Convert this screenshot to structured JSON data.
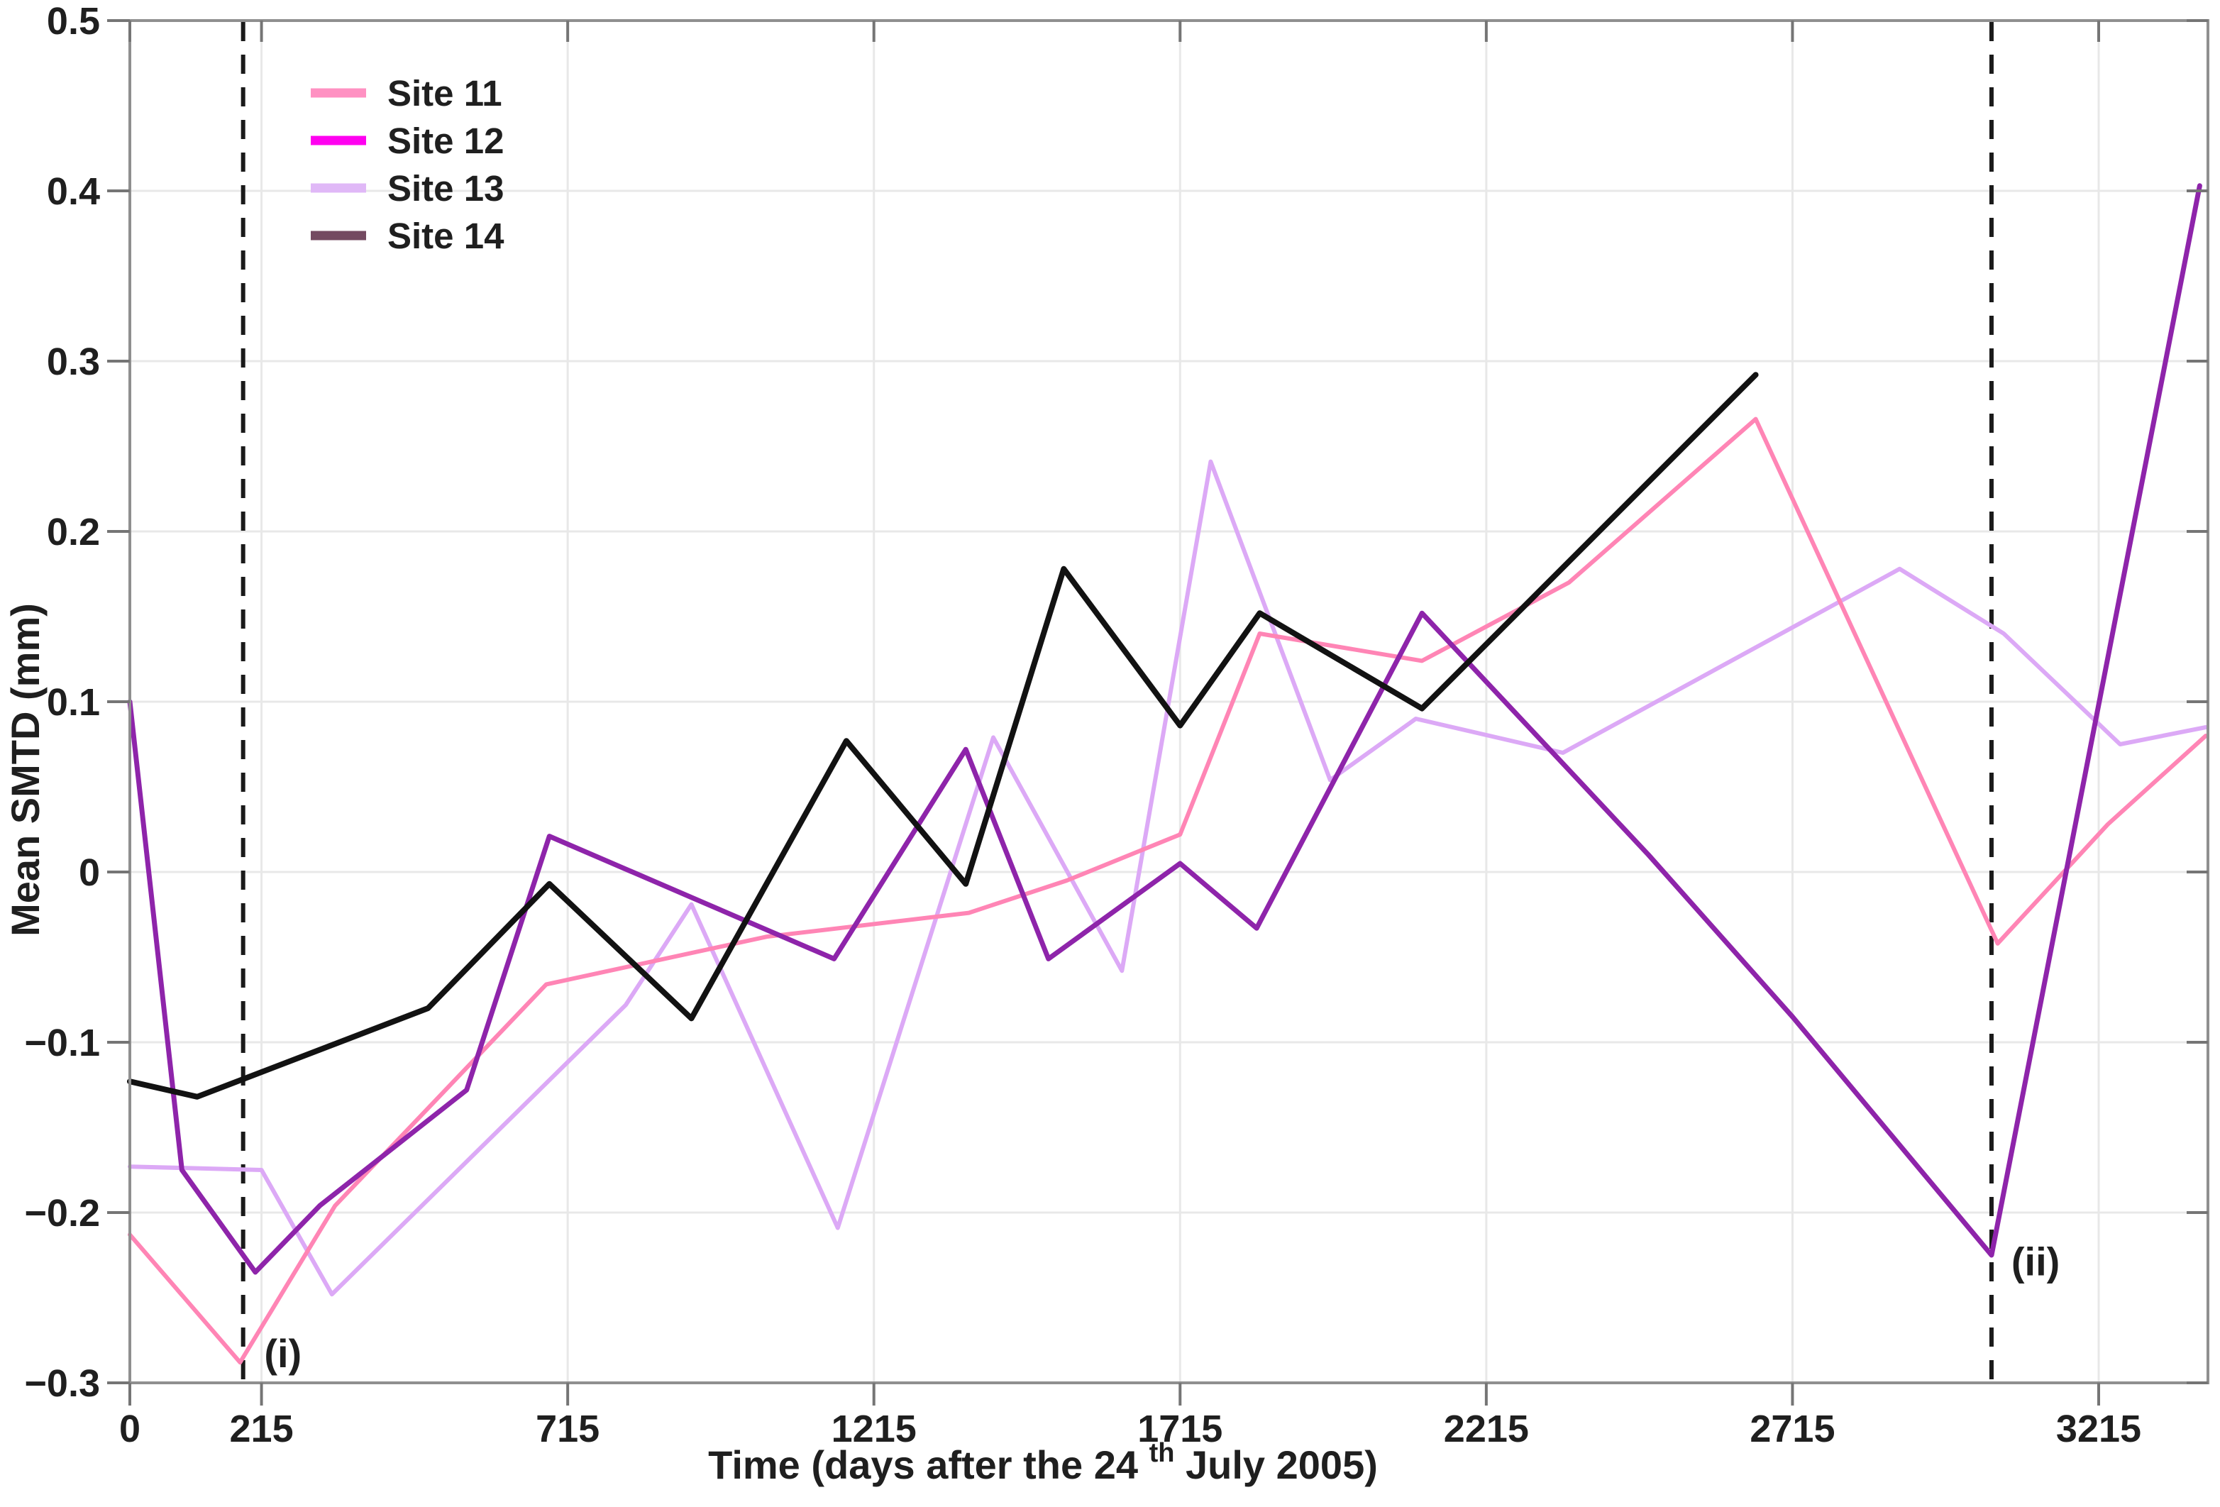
{
  "page": {
    "background": "#ffffff"
  },
  "chart_data": {
    "type": "line",
    "title": "",
    "ylabel": "Mean SMTD (mm)",
    "xlabel_pre": "Time (days after the 24",
    "xlabel_sup": "th",
    "xlabel_post": " July 2005)",
    "xlim": [
      0,
      3393
    ],
    "ylim": [
      -0.3,
      0.5
    ],
    "grid": true,
    "legend_position": "top-left",
    "x_ticks": [
      {
        "value": 0,
        "label": "0"
      },
      {
        "value": 215,
        "label": "215"
      },
      {
        "value": 715,
        "label": "715"
      },
      {
        "value": 1215,
        "label": "1215"
      },
      {
        "value": 1715,
        "label": "1715"
      },
      {
        "value": 2215,
        "label": "2215"
      },
      {
        "value": 2715,
        "label": "2715"
      },
      {
        "value": 3215,
        "label": "3215"
      }
    ],
    "y_ticks": [
      {
        "value": -0.3,
        "label": "−0.3"
      },
      {
        "value": -0.2,
        "label": "−0.2"
      },
      {
        "value": -0.1,
        "label": "−0.1"
      },
      {
        "value": 0,
        "label": "0"
      },
      {
        "value": 0.1,
        "label": "0.1"
      },
      {
        "value": 0.2,
        "label": "0.2"
      },
      {
        "value": 0.3,
        "label": "0.3"
      },
      {
        "value": 0.4,
        "label": "0.4"
      },
      {
        "value": 0.5,
        "label": "0.5"
      }
    ],
    "series": [
      {
        "name": "Site 11",
        "legend_color": "#FF91C2",
        "line_color": "#FF85B5",
        "line_width": 6,
        "points": [
          [
            0,
            -0.213
          ],
          [
            180,
            -0.288
          ],
          [
            335,
            -0.196
          ],
          [
            680,
            -0.066
          ],
          [
            1040,
            -0.038
          ],
          [
            1370,
            -0.024
          ],
          [
            1530,
            -0.005
          ],
          [
            1715,
            0.022
          ],
          [
            1845,
            0.14
          ],
          [
            2110,
            0.124
          ],
          [
            2350,
            0.17
          ],
          [
            2655,
            0.266
          ],
          [
            3050,
            -0.042
          ],
          [
            3230,
            0.028
          ],
          [
            3390,
            0.08
          ]
        ]
      },
      {
        "name": "Site 12",
        "legend_color": "#FF00F0",
        "line_color": "#8E24AA",
        "line_width": 7,
        "points": [
          [
            0,
            0.1
          ],
          [
            85,
            -0.175
          ],
          [
            205,
            -0.235
          ],
          [
            310,
            -0.196
          ],
          [
            550,
            -0.128
          ],
          [
            685,
            0.021
          ],
          [
            1150,
            -0.051
          ],
          [
            1365,
            0.072
          ],
          [
            1500,
            -0.051
          ],
          [
            1715,
            0.005
          ],
          [
            1840,
            -0.033
          ],
          [
            2110,
            0.152
          ],
          [
            2480,
            0.01
          ],
          [
            2715,
            -0.085
          ],
          [
            3040,
            -0.225
          ],
          [
            3380,
            0.403
          ]
        ]
      },
      {
        "name": "Site 13",
        "legend_color": "#E0B8F7",
        "line_color": "#DCA9F6",
        "line_width": 6,
        "points": [
          [
            0,
            -0.173
          ],
          [
            215,
            -0.175
          ],
          [
            330,
            -0.248
          ],
          [
            810,
            -0.078
          ],
          [
            917,
            -0.019
          ],
          [
            1156,
            -0.209
          ],
          [
            1410,
            0.079
          ],
          [
            1620,
            -0.058
          ],
          [
            1765,
            0.241
          ],
          [
            1960,
            0.054
          ],
          [
            2100,
            0.09
          ],
          [
            2340,
            0.07
          ],
          [
            2890,
            0.178
          ],
          [
            3060,
            0.14
          ],
          [
            3250,
            0.075
          ],
          [
            3390,
            0.085
          ]
        ]
      },
      {
        "name": "Site 14",
        "legend_color": "#744A61",
        "line_color": "#121212",
        "line_width": 8,
        "points": [
          [
            0,
            -0.123
          ],
          [
            110,
            -0.132
          ],
          [
            487,
            -0.08
          ],
          [
            685,
            -0.007
          ],
          [
            917,
            -0.086
          ],
          [
            1170,
            0.077
          ],
          [
            1365,
            -0.007
          ],
          [
            1525,
            0.178
          ],
          [
            1715,
            0.086
          ],
          [
            1845,
            0.152
          ],
          [
            2110,
            0.096
          ],
          [
            2655,
            0.292
          ]
        ]
      }
    ],
    "annotations": [
      {
        "label": "(i)",
        "line_x_day": 185,
        "text_x_day": 250,
        "text_y_val": -0.283
      },
      {
        "label": "(ii)",
        "line_x_day": 3040,
        "text_x_day": 3112,
        "text_y_val": -0.229
      }
    ],
    "colors": {
      "grid": "#E8E8E8",
      "spine": "#8F8F8F",
      "tick": "#757575",
      "dashed_line": "#1A1A1A",
      "text": "#1F1F1F"
    }
  }
}
